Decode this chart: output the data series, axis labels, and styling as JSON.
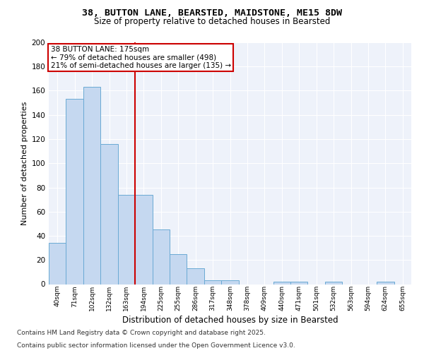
{
  "title": "38, BUTTON LANE, BEARSTED, MAIDSTONE, ME15 8DW",
  "subtitle": "Size of property relative to detached houses in Bearsted",
  "xlabel": "Distribution of detached houses by size in Bearsted",
  "ylabel": "Number of detached properties",
  "bar_labels": [
    "40sqm",
    "71sqm",
    "102sqm",
    "132sqm",
    "163sqm",
    "194sqm",
    "225sqm",
    "255sqm",
    "286sqm",
    "317sqm",
    "348sqm",
    "378sqm",
    "409sqm",
    "440sqm",
    "471sqm",
    "501sqm",
    "532sqm",
    "563sqm",
    "594sqm",
    "624sqm",
    "655sqm"
  ],
  "bar_values": [
    34,
    153,
    163,
    116,
    74,
    74,
    45,
    25,
    13,
    3,
    3,
    0,
    0,
    2,
    2,
    0,
    2,
    0,
    0,
    2,
    0
  ],
  "property_label": "38 BUTTON LANE: 175sqm",
  "annotation_line1": "← 79% of detached houses are smaller (498)",
  "annotation_line2": "21% of semi-detached houses are larger (135) →",
  "vline_x": 4.5,
  "bar_color": "#c5d8f0",
  "bar_edgecolor": "#6aaad4",
  "vline_color": "#cc0000",
  "box_edgecolor": "#cc0000",
  "background_color": "#eef2fa",
  "grid_color": "#ffffff",
  "footer_line1": "Contains HM Land Registry data © Crown copyright and database right 2025.",
  "footer_line2": "Contains public sector information licensed under the Open Government Licence v3.0.",
  "ylim": [
    0,
    200
  ],
  "yticks": [
    0,
    20,
    40,
    60,
    80,
    100,
    120,
    140,
    160,
    180,
    200
  ]
}
